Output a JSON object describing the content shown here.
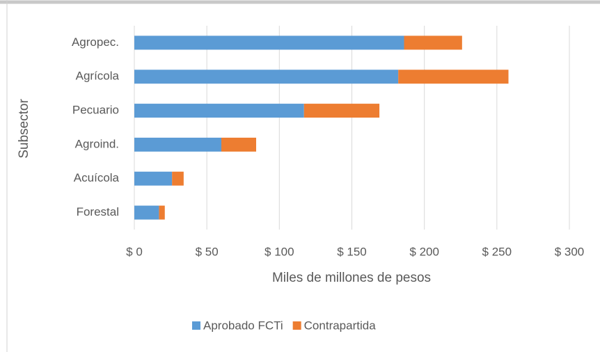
{
  "chart_data": {
    "type": "stacked_barh",
    "y_label": "Subsector",
    "x_label": "Miles de millones de pesos",
    "categories": [
      "Agropec.",
      "Agrícola",
      "Pecuario",
      "Agroind.",
      "Acuícola",
      "Forestal"
    ],
    "series": [
      {
        "name": "Aprobado FCTi",
        "color": "#5b9bd5",
        "values": [
          186,
          182,
          117,
          60,
          26,
          17
        ]
      },
      {
        "name": "Contrapartida",
        "color": "#ed7d31",
        "values": [
          40,
          76,
          52,
          24,
          8,
          4
        ]
      }
    ],
    "xlim": [
      0,
      300
    ],
    "xticks": [
      {
        "value": 0,
        "label": "$ 0"
      },
      {
        "value": 50,
        "label": "$ 50"
      },
      {
        "value": 100,
        "label": "$ 100"
      },
      {
        "value": 150,
        "label": "$ 150"
      },
      {
        "value": 200,
        "label": "$ 200"
      },
      {
        "value": 250,
        "label": "$ 250"
      },
      {
        "value": 300,
        "label": "$ 300"
      }
    ],
    "grid": true,
    "legend": "bottom"
  }
}
